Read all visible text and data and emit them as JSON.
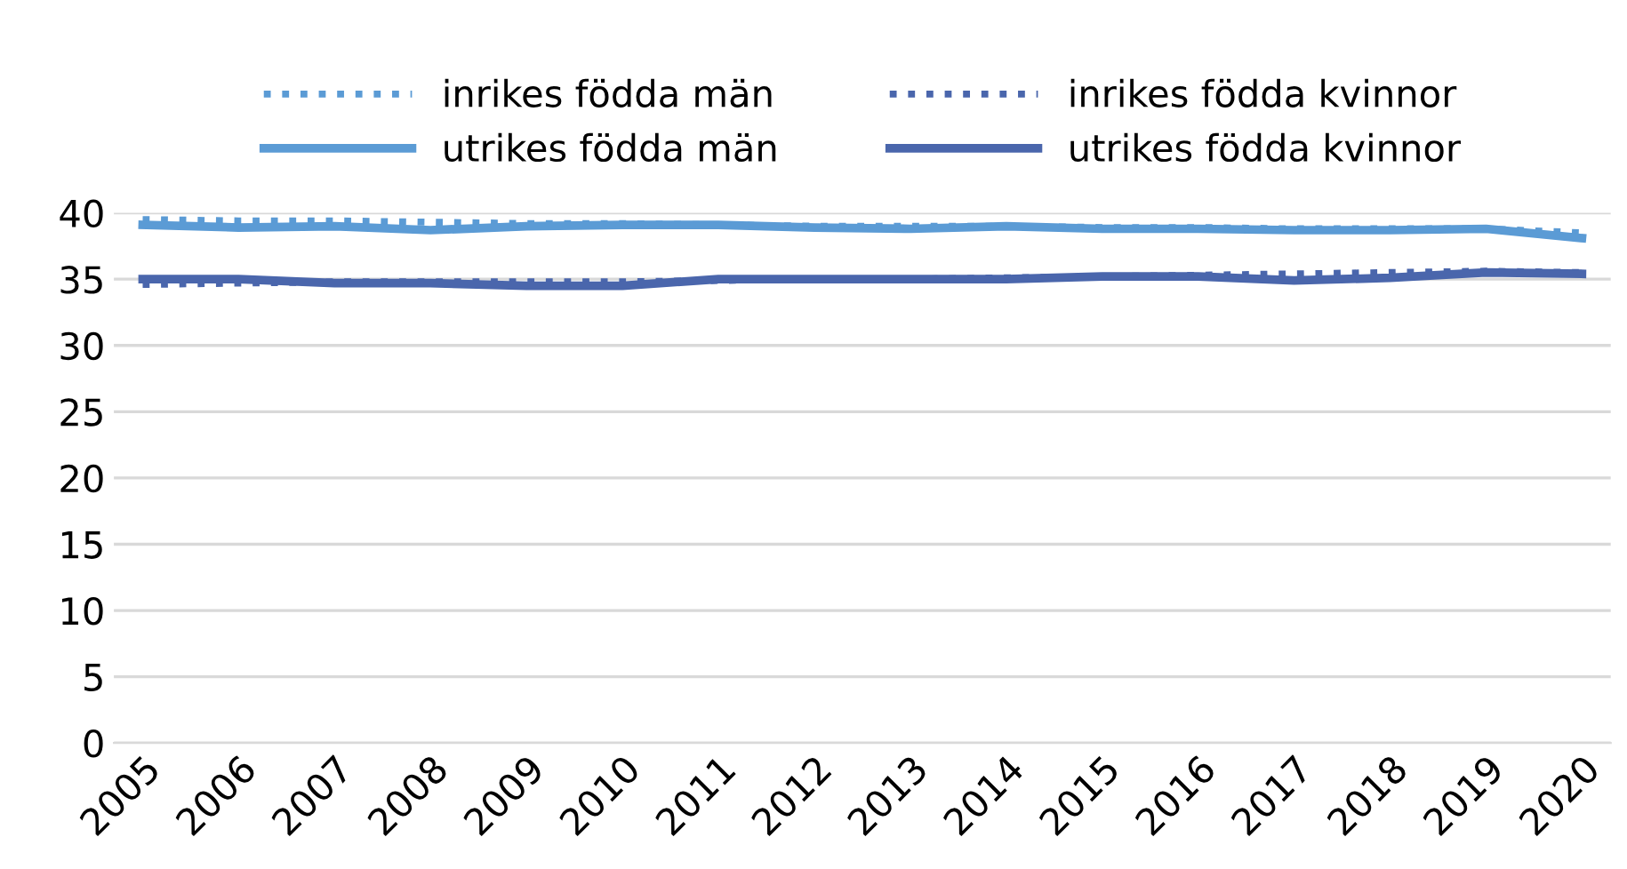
{
  "chart_data": {
    "type": "line",
    "categories": [
      "2005",
      "2006",
      "2007",
      "2008",
      "2009",
      "2010",
      "2011",
      "2012",
      "2013",
      "2014",
      "2015",
      "2016",
      "2017",
      "2018",
      "2019",
      "2020"
    ],
    "series": [
      {
        "name": "inrikes födda män",
        "color": "#5b9bd5",
        "line_style": "dotted",
        "values": [
          39.5,
          39.4,
          39.4,
          39.3,
          39.2,
          39.2,
          39.1,
          39.0,
          39.0,
          39.0,
          38.9,
          38.9,
          38.8,
          38.8,
          38.8,
          38.5
        ]
      },
      {
        "name": "inrikes födda kvinnor",
        "color": "#4a66ac",
        "line_style": "dotted",
        "values": [
          34.6,
          34.7,
          34.8,
          34.8,
          34.8,
          34.8,
          34.9,
          35.0,
          35.0,
          35.1,
          35.2,
          35.3,
          35.4,
          35.5,
          35.6,
          35.5
        ]
      },
      {
        "name": "utrikes födda män",
        "color": "#5b9bd5",
        "line_style": "solid",
        "values": [
          39.1,
          38.9,
          39.0,
          38.7,
          39.0,
          39.1,
          39.1,
          38.9,
          38.8,
          39.0,
          38.8,
          38.8,
          38.7,
          38.7,
          38.8,
          38.1
        ]
      },
      {
        "name": "utrikes födda kvinnor",
        "color": "#4a66ac",
        "line_style": "solid",
        "values": [
          35.0,
          35.0,
          34.7,
          34.7,
          34.5,
          34.5,
          35.0,
          35.0,
          35.0,
          35.0,
          35.2,
          35.2,
          34.9,
          35.1,
          35.5,
          35.4
        ]
      }
    ],
    "ylim": [
      0,
      40
    ],
    "yticks": [
      0,
      5,
      10,
      15,
      20,
      25,
      30,
      35,
      40
    ],
    "grid": "y",
    "legend": "top"
  }
}
